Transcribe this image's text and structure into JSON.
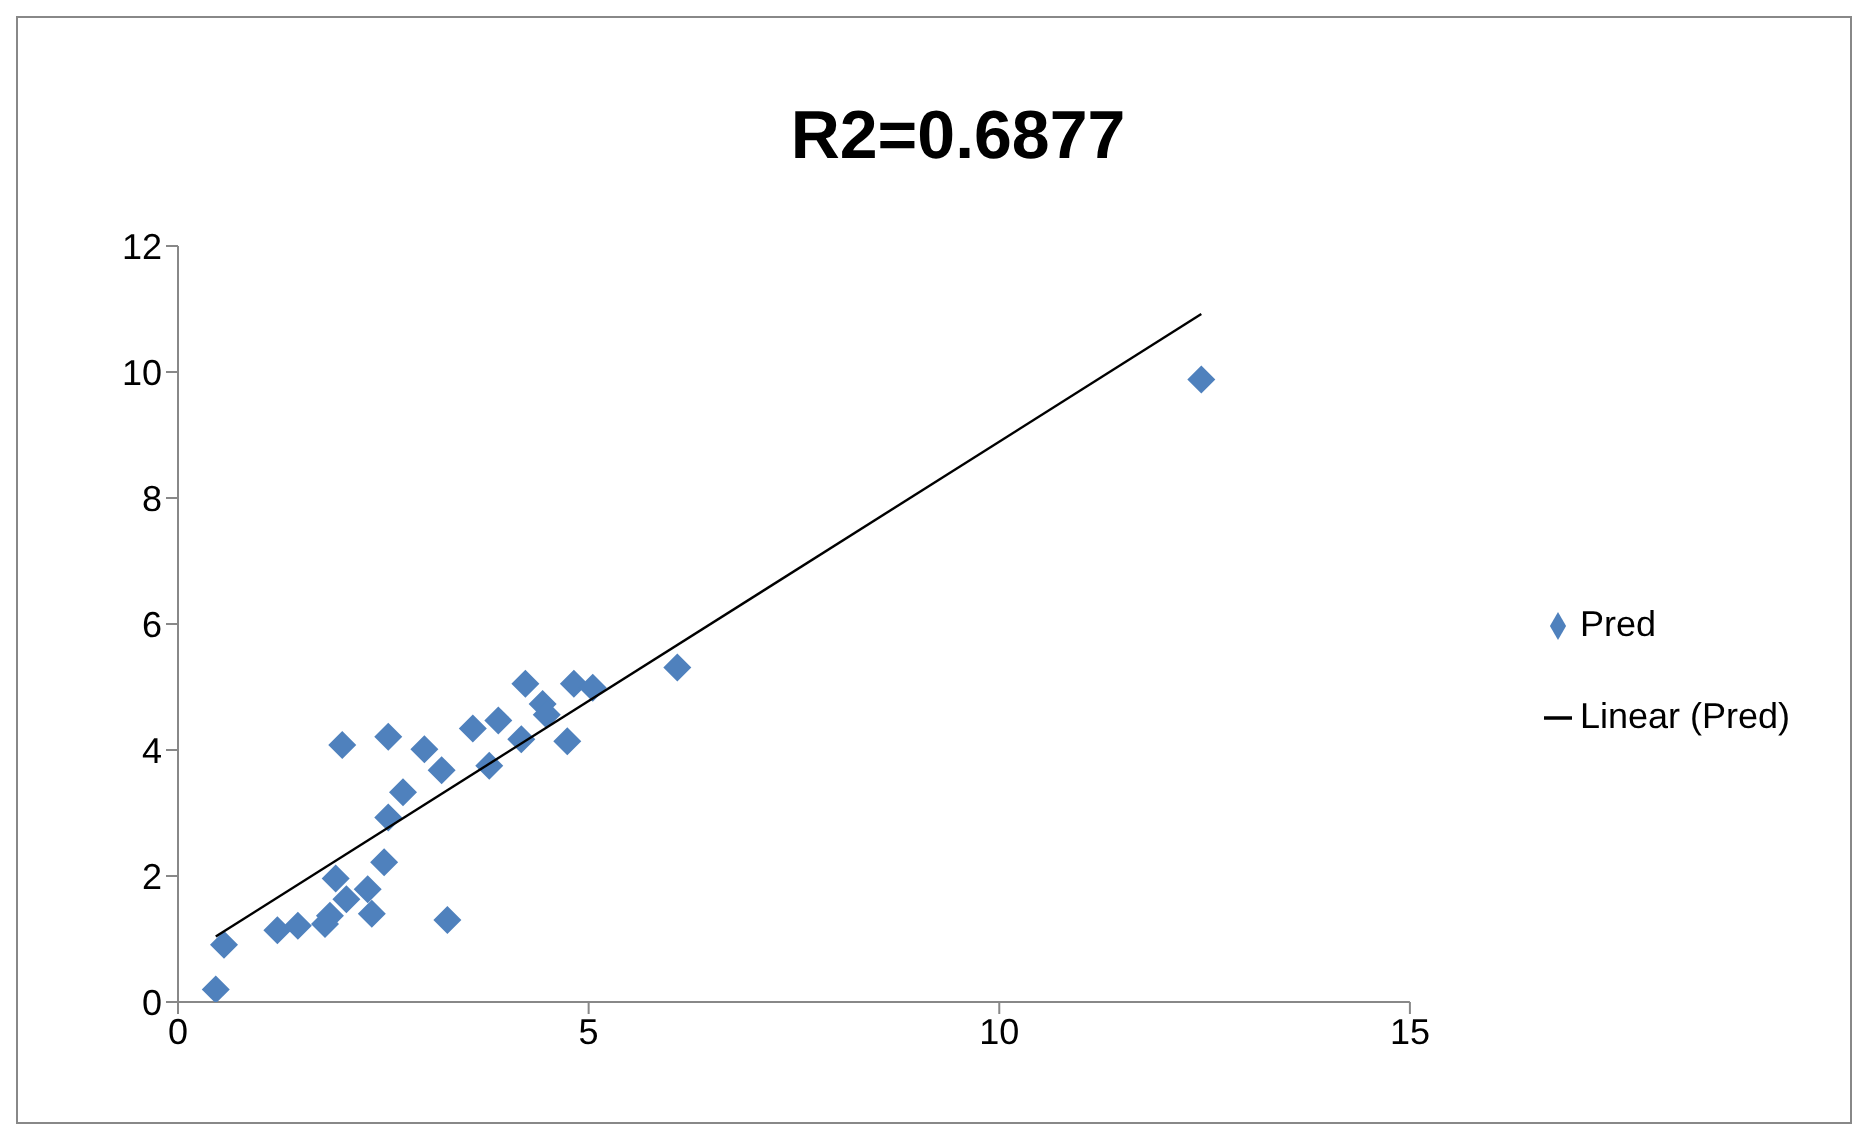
{
  "chart_data": {
    "type": "scatter",
    "title": "R2=0.6877",
    "xlim": [
      0,
      15
    ],
    "xticks": [
      0,
      5,
      10,
      15
    ],
    "ylim": [
      0,
      12
    ],
    "yticks": [
      0,
      2,
      4,
      6,
      8,
      10,
      12
    ],
    "grid": false,
    "legend": "right",
    "series": [
      {
        "name": "Pred",
        "type": "scatter",
        "marker": "diamond",
        "color": "#4f81bd",
        "x": [
          0.46,
          0.56,
          1.21,
          1.46,
          1.85,
          1.79,
          1.92,
          2.05,
          2.31,
          2.36,
          2.51,
          3.28,
          2.56,
          2.74,
          2.0,
          2.56,
          3.0,
          3.21,
          3.59,
          3.9,
          3.79,
          4.18,
          4.23,
          4.44,
          4.49,
          4.74,
          4.82,
          5.05,
          6.08,
          12.46
        ],
        "values": [
          0.2,
          0.91,
          1.14,
          1.21,
          1.37,
          1.24,
          1.96,
          1.63,
          1.79,
          1.4,
          2.22,
          1.3,
          2.93,
          3.33,
          4.08,
          4.21,
          4.01,
          3.68,
          4.34,
          4.47,
          3.75,
          4.17,
          5.05,
          4.73,
          4.56,
          4.14,
          5.05,
          4.99,
          5.31,
          9.88
        ]
      },
      {
        "name": "Linear (Pred)",
        "type": "line",
        "marker": "none",
        "color": "#000000",
        "x": [
          0.46,
          12.46
        ],
        "values": [
          1.04,
          10.92
        ]
      }
    ]
  }
}
